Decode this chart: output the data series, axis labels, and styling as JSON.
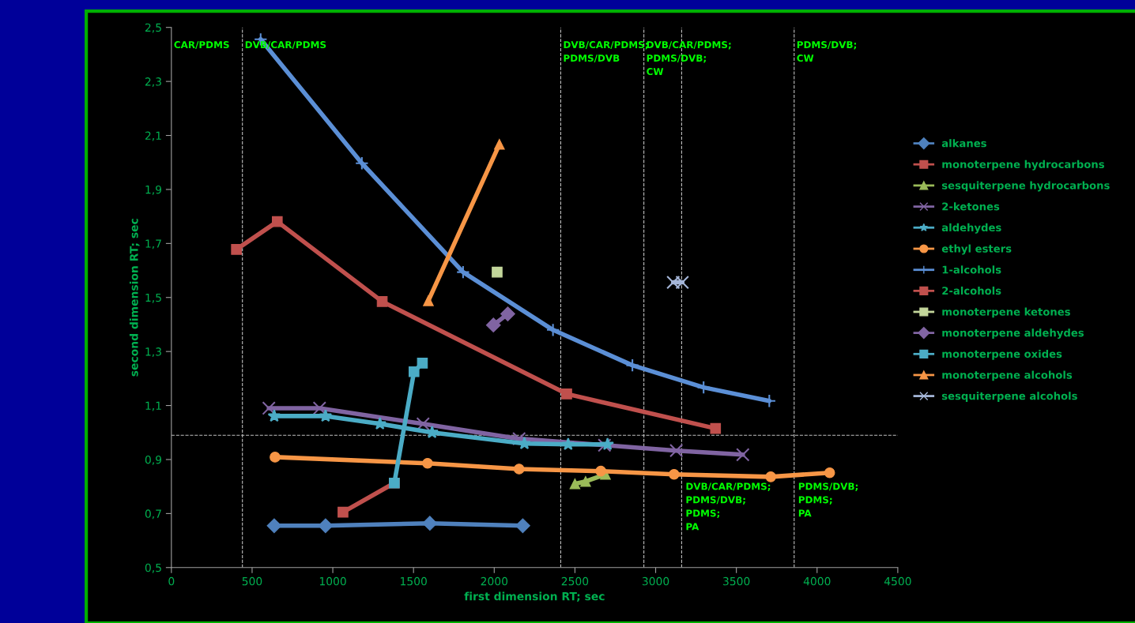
{
  "chart_data": {
    "type": "line",
    "xlabel": "first dimension RT; sec",
    "ylabel": "second dimension RT; sec",
    "xlim": [
      0,
      4500
    ],
    "xticks": [
      0,
      500,
      1000,
      1500,
      2000,
      2500,
      3000,
      3500,
      4000,
      4500
    ],
    "ylim": [
      0.5,
      2.5
    ],
    "yticks": [
      {
        "value": 0.5,
        "label": "0,5"
      },
      {
        "value": 0.7,
        "label": "0,7"
      },
      {
        "value": 0.9,
        "label": "0,9"
      },
      {
        "value": 1.1,
        "label": "1,1"
      },
      {
        "value": 1.3,
        "label": "1,3"
      },
      {
        "value": 1.5,
        "label": "1,5"
      },
      {
        "value": 1.7,
        "label": "1,7"
      },
      {
        "value": 1.9,
        "label": "1,9"
      },
      {
        "value": 2.1,
        "label": "2,1"
      },
      {
        "value": 2.3,
        "label": "2,3"
      },
      {
        "value": 2.5,
        "label": "2,5"
      }
    ],
    "grid": false,
    "legend": "right",
    "series": [
      {
        "name": "alkanes",
        "color": "#4f81bd",
        "marker": "diamond",
        "x": [
          637,
          955,
          1601,
          2177
        ],
        "values": [
          0.655,
          0.655,
          0.664,
          0.655
        ]
      },
      {
        "name": "monoterpene hydrocarbons",
        "color": "#c0504d",
        "marker": "square",
        "x": [
          1063,
          1381
        ],
        "values": [
          0.705,
          0.813
        ]
      },
      {
        "name": "sesquiterpene hydrocarbons",
        "color": "#9bbb59",
        "marker": "triangle",
        "x": [
          2500,
          2566,
          2689
        ],
        "values": [
          0.81,
          0.819,
          0.845
        ]
      },
      {
        "name": "2-ketones",
        "color": "#8064a2",
        "marker": "x",
        "x": [
          604,
          918,
          1559,
          2154,
          2683,
          3128,
          3540
        ],
        "values": [
          1.09,
          1.09,
          1.032,
          0.977,
          0.953,
          0.933,
          0.918
        ]
      },
      {
        "name": "aldehydes",
        "color": "#4bacc6",
        "marker": "star",
        "x": [
          637,
          955,
          1292,
          1615,
          2187,
          2458,
          2702
        ],
        "values": [
          1.061,
          1.061,
          1.032,
          1.0,
          0.959,
          0.956,
          0.956
        ]
      },
      {
        "name": "ethyl esters",
        "color": "#f79646",
        "marker": "circle",
        "x": [
          642,
          1587,
          2154,
          2660,
          3114,
          3713,
          4078
        ],
        "values": [
          0.909,
          0.886,
          0.865,
          0.857,
          0.845,
          0.836,
          0.851
        ]
      },
      {
        "name": "1-alcohols",
        "color": "#5b8fd6",
        "marker": "plus",
        "x": [
          553,
          1180,
          1807,
          2364,
          2856,
          3297,
          3704
        ],
        "values": [
          2.456,
          1.997,
          1.594,
          1.38,
          1.249,
          1.167,
          1.117
        ]
      },
      {
        "name": "2-alcohols",
        "color": "#c0504d",
        "marker": "square",
        "x": [
          403,
          656,
          1306,
          2449,
          3371
        ],
        "values": [
          1.678,
          1.781,
          1.485,
          1.143,
          1.015
        ]
      },
      {
        "name": "monoterpene ketones",
        "color": "#c3d69b",
        "marker": "square",
        "x": [
          2018
        ],
        "values": [
          1.594
        ]
      },
      {
        "name": "monoterpene aldehydes",
        "color": "#8064a2",
        "marker": "diamond",
        "x": [
          1995,
          2084
        ],
        "values": [
          1.398,
          1.439
        ]
      },
      {
        "name": "monoterpene oxides",
        "color": "#4bacc6",
        "marker": "square",
        "x": [
          1381,
          1503,
          1555
        ],
        "values": [
          0.813,
          1.225,
          1.257
        ]
      },
      {
        "name": "monoterpene alcohols",
        "color": "#f79646",
        "marker": "triangle",
        "x": [
          1592,
          2032
        ],
        "values": [
          1.488,
          2.067
        ]
      },
      {
        "name": "sesquiterpene alcohols",
        "color": "#a5b6d8",
        "marker": "x",
        "x": [
          3109,
          3165
        ],
        "values": [
          1.556,
          1.556
        ]
      }
    ],
    "ref_lines": [
      {
        "axis": "x",
        "value": 440,
        "color": "#bfbfbf",
        "line_style": "dashed"
      },
      {
        "axis": "x",
        "value": 2412,
        "color": "#bfbfbf",
        "line_style": "dashed"
      },
      {
        "axis": "x",
        "value": 2927,
        "color": "#bfbfbf",
        "line_style": "dashed"
      },
      {
        "axis": "x",
        "value": 3161,
        "color": "#bfbfbf",
        "line_style": "dashed"
      },
      {
        "axis": "x",
        "value": 3858,
        "color": "#bfbfbf",
        "line_style": "dashed"
      },
      {
        "axis": "y",
        "value": 0.99,
        "color": "#bfbfbf",
        "line_style": "dashed"
      }
    ],
    "annotations": [
      "CAR/PDMS",
      "DVB/CAR/PDMS",
      "DVB/CAR/PDMS;\nPDMS/DVB",
      "DVB/CAR/PDMS;\nPDMS/DVB;\nCW",
      "PDMS/DVB;\nCW",
      "DVB/CAR/PDMS;\nPDMS/DVB;\nPDMS;\nPA",
      "PDMS/DVB;\nPDMS;\nPA"
    ]
  }
}
